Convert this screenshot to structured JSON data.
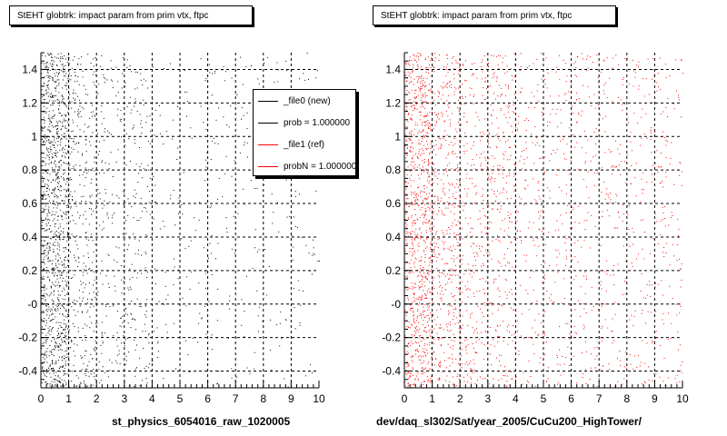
{
  "colors": {
    "new": "#000000",
    "ref": "#ff0000"
  },
  "chart_data": [
    {
      "type": "scatter",
      "title": "StEHT globtrk: impact param from prim vtx, ftpc",
      "xlabel": "st_physics_6054016_raw_1020005",
      "ylabel": "",
      "xlim": [
        0,
        10
      ],
      "ylim": [
        -0.5,
        1.5
      ],
      "xticks": [
        "0",
        "1",
        "2",
        "3",
        "4",
        "5",
        "6",
        "7",
        "8",
        "9",
        "10"
      ],
      "yticks": [
        "-0.4",
        "-0.2",
        "-0",
        "0.2",
        "0.4",
        "0.6",
        "0.8",
        "1",
        "1.2",
        "1.4"
      ],
      "grid": true,
      "series_color": "#000000",
      "density_profile": [
        {
          "x_range": [
            0,
            1
          ],
          "relative_density": 10
        },
        {
          "x_range": [
            1,
            2
          ],
          "relative_density": 3
        },
        {
          "x_range": [
            2,
            4
          ],
          "relative_density": 1.5
        },
        {
          "x_range": [
            4,
            10
          ],
          "relative_density": 0.5
        }
      ],
      "legend": {
        "position": "top-right",
        "entries": [
          {
            "label": "_file0 (new)",
            "color": "#000000"
          },
          {
            "label": "prob = 1.000000",
            "color": "#000000"
          },
          {
            "label": "_file1 (ref)",
            "color": "#ff0000"
          },
          {
            "label": "probN = 1.000000",
            "color": "#ff0000"
          }
        ]
      }
    },
    {
      "type": "scatter",
      "title": "StEHT globtrk: impact param from prim vtx, ftpc",
      "xlabel": "dev/daq_sl302/Sat/year_2005/CuCu200_HighTower/",
      "ylabel": "",
      "xlim": [
        0,
        10
      ],
      "ylim": [
        -0.5,
        1.5
      ],
      "xticks": [
        "0",
        "1",
        "2",
        "3",
        "4",
        "5",
        "6",
        "7",
        "8",
        "9",
        "10"
      ],
      "yticks": [
        "-0.4",
        "-0.2",
        "-0",
        "0.2",
        "0.4",
        "0.6",
        "0.8",
        "1",
        "1.2",
        "1.4"
      ],
      "grid": true,
      "series_color": "#ff0000",
      "density_profile": [
        {
          "x_range": [
            0,
            1
          ],
          "relative_density": 8
        },
        {
          "x_range": [
            1,
            2
          ],
          "relative_density": 4
        },
        {
          "x_range": [
            2,
            4
          ],
          "relative_density": 2.5
        },
        {
          "x_range": [
            4,
            10
          ],
          "relative_density": 1.2
        }
      ]
    }
  ]
}
